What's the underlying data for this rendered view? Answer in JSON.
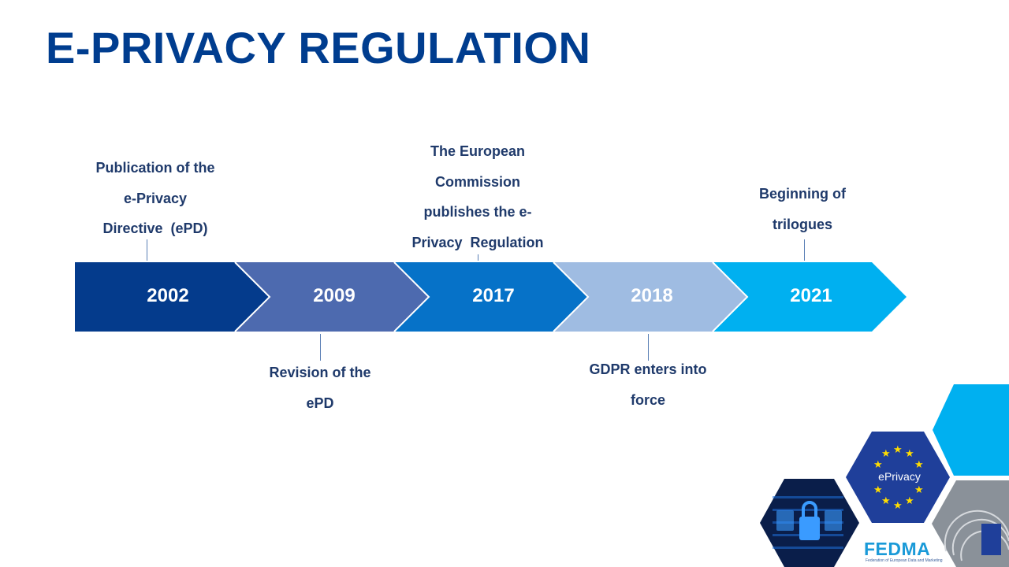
{
  "title": "E-PRIVACY REGULATION",
  "colors": {
    "title": "#003d8f",
    "arrow_1": "#043b8c",
    "arrow_2": "#4d6aaf",
    "arrow_3": "#0672c8",
    "arrow_4": "#9fbce2",
    "arrow_5": "#00b0f0",
    "label_text": "#1f3a6b"
  },
  "timeline": [
    {
      "year": "2002",
      "label_lines": [
        "Publication of the",
        "e-Privacy",
        "Directive  (ePD)"
      ],
      "position": "above"
    },
    {
      "year": "2009",
      "label_lines": [
        "Revision of the",
        "ePD"
      ],
      "position": "below"
    },
    {
      "year": "2017",
      "label_lines": [
        "The European",
        "Commission",
        "publishes the e-",
        "Privacy  Regulation"
      ],
      "position": "above"
    },
    {
      "year": "2018",
      "label_lines": [
        "GDPR enters into",
        "force"
      ],
      "position": "below"
    },
    {
      "year": "2021",
      "label_lines": [
        "Beginning of",
        "trilogues"
      ],
      "position": "above"
    }
  ],
  "decoration": {
    "eprivacy_badge": "ePrivacy",
    "logo_name": "FEDMA",
    "logo_subtitle": "Federation of European Data and Marketing",
    "icons": [
      "lock-icon",
      "eu-stars-icon",
      "parliament-icon"
    ]
  }
}
